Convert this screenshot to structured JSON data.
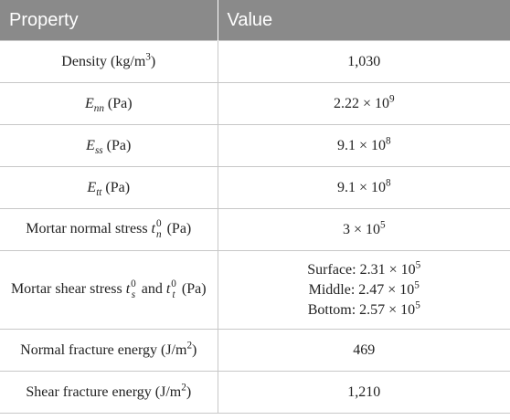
{
  "header": {
    "col1": "Property",
    "col2": "Value"
  },
  "rows": {
    "density": {
      "label": "Density (kg/m",
      "unit_exp": "3",
      "unit_close": ")",
      "value": "1,030"
    },
    "enn": {
      "sym": "E",
      "sub": "nn",
      "unit": " (Pa)",
      "mant": "2.22 × 10",
      "exp": "9"
    },
    "ess": {
      "sym": "E",
      "sub": "ss",
      "unit": " (Pa)",
      "mant": "9.1 × 10",
      "exp": "8"
    },
    "ett": {
      "sym": "E",
      "sub": "tt",
      "unit": " (Pa)",
      "mant": "9.1 × 10",
      "exp": "8"
    },
    "mortar_normal": {
      "label": "Mortar normal stress ",
      "sym": "t",
      "sup": "0",
      "sub": "n",
      "unit": " (Pa)",
      "mant": "3 × 10",
      "exp": "5"
    },
    "mortar_shear": {
      "label": "Mortar shear stress ",
      "sym1": "t",
      "sup1": "0",
      "sub1": "s",
      "and": " and ",
      "sym2": "t",
      "sup2": "0",
      "sub2": "t",
      "unit": " (Pa)",
      "values": [
        {
          "prefix": "Surface: 2.31 × 10",
          "exp": "5"
        },
        {
          "prefix": "Middle: 2.47 × 10",
          "exp": "5"
        },
        {
          "prefix": "Bottom: 2.57 × 10",
          "exp": "5"
        }
      ]
    },
    "normal_fracture": {
      "label": "Normal fracture energy (J/m",
      "unit_exp": "2",
      "unit_close": ")",
      "value": "469"
    },
    "shear_fracture": {
      "label": "Shear fracture energy (J/m",
      "unit_exp": "2",
      "unit_close": ")",
      "value": "1,210"
    }
  }
}
